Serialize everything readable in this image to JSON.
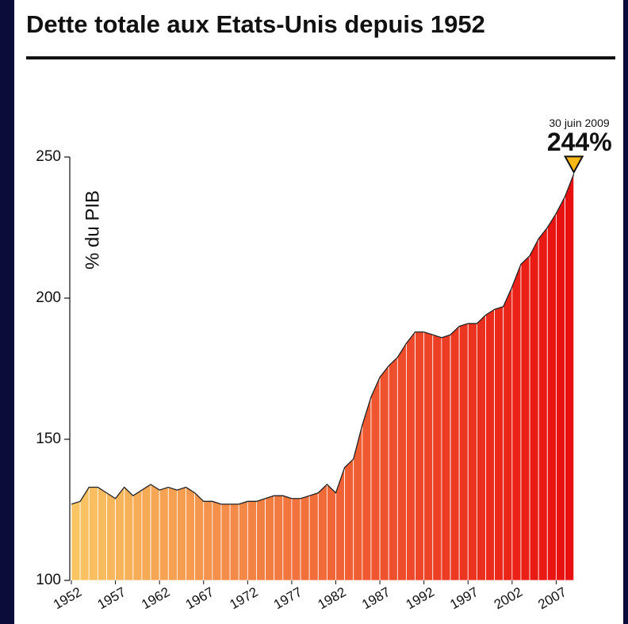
{
  "chart_data": {
    "type": "area",
    "title": "Dette totale aux Etats-Unis depuis 1952",
    "y_label": "% du PIB",
    "x": [
      1952,
      1953,
      1954,
      1955,
      1956,
      1957,
      1958,
      1959,
      1960,
      1961,
      1962,
      1963,
      1964,
      1965,
      1966,
      1967,
      1968,
      1969,
      1970,
      1971,
      1972,
      1973,
      1974,
      1975,
      1976,
      1977,
      1978,
      1979,
      1980,
      1981,
      1982,
      1983,
      1984,
      1985,
      1986,
      1987,
      1988,
      1989,
      1990,
      1991,
      1992,
      1993,
      1994,
      1995,
      1996,
      1997,
      1998,
      1999,
      2000,
      2001,
      2002,
      2003,
      2004,
      2005,
      2006,
      2007,
      2008,
      2009
    ],
    "values": [
      127,
      128,
      133,
      133,
      131,
      129,
      133,
      130,
      132,
      134,
      132,
      133,
      132,
      133,
      131,
      128,
      128,
      127,
      127,
      127,
      128,
      128,
      129,
      130,
      130,
      129,
      129,
      130,
      131,
      134,
      131,
      140,
      143,
      155,
      165,
      172,
      176,
      179,
      184,
      188,
      188,
      187,
      186,
      187,
      190,
      191,
      191,
      194,
      196,
      197,
      204,
      212,
      215,
      221,
      225,
      230,
      236,
      244
    ],
    "colors": [
      "#f9c462",
      "#e80f0f"
    ],
    "line_color": "#222222",
    "xlim": [
      1952,
      2009.3
    ],
    "xticks": [
      1952,
      1957,
      1962,
      1967,
      1972,
      1977,
      1982,
      1987,
      1992,
      1997,
      2002,
      2007
    ],
    "ylim": [
      100,
      250
    ],
    "yticks": [
      100,
      150,
      200,
      250
    ],
    "annotation": {
      "x_label": "30 juin 2009",
      "label": "244%",
      "value": 244,
      "color": "#f7b815"
    }
  }
}
